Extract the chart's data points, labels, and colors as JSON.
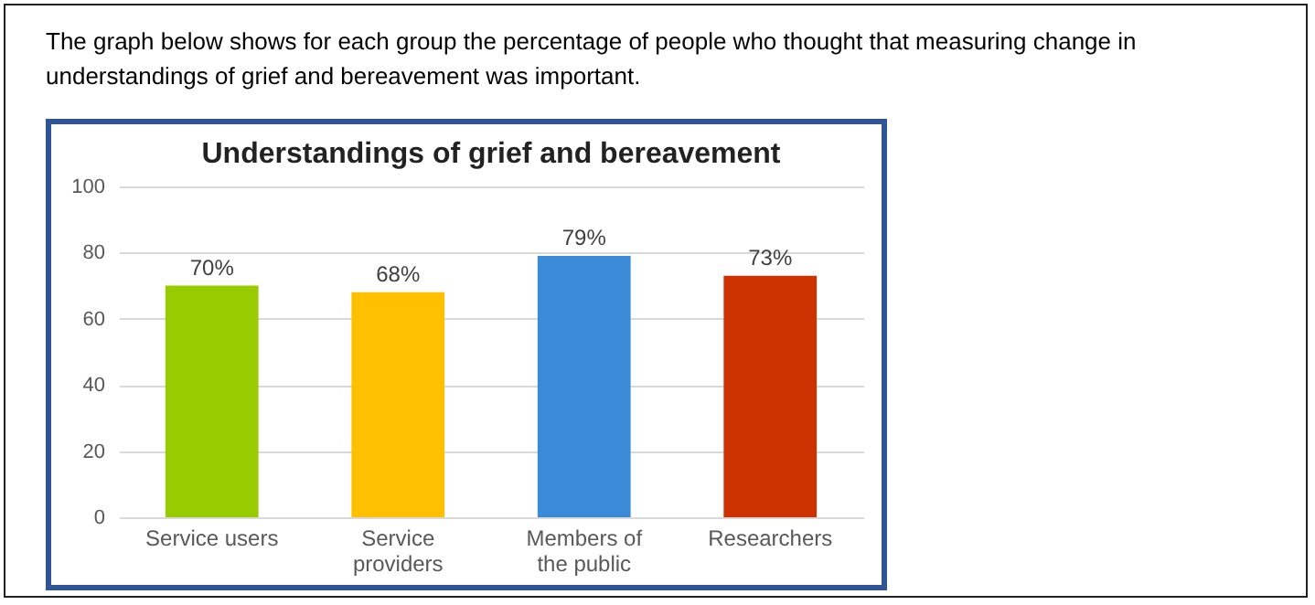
{
  "chart_data": {
    "type": "bar",
    "title": "Understandings of grief and bereavement",
    "annotations": [
      "The graph below shows for each group the percentage of people who thought that measuring change in understandings of grief and bereavement was important."
    ],
    "categories": [
      "Service users",
      "Service providers",
      "Members of the public",
      "Researchers"
    ],
    "values": [
      70,
      68,
      79,
      73
    ],
    "colors": [
      "#99cc00",
      "#ffc000",
      "#3a8ad8",
      "#cc3300"
    ],
    "value_labels": [
      "70%",
      "68%",
      "79%",
      "73%"
    ],
    "ylim": [
      0,
      100
    ],
    "yticks": [
      0,
      20,
      40,
      60,
      80,
      100
    ],
    "grid": "y"
  }
}
